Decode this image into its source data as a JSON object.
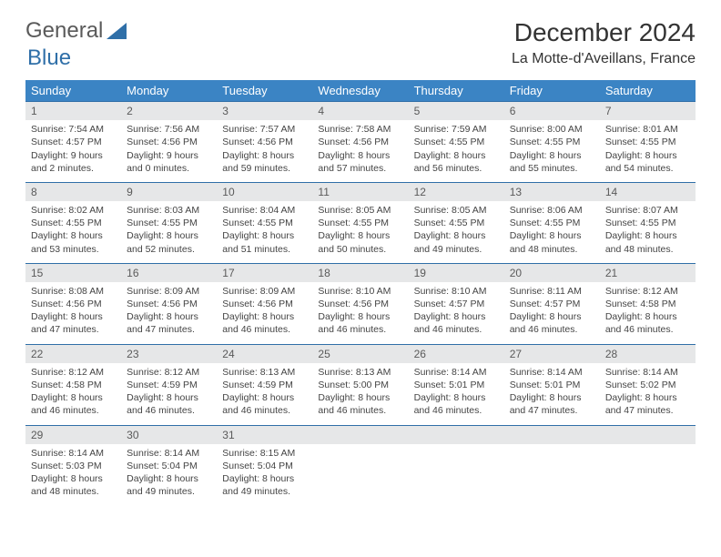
{
  "logo": {
    "text1": "General",
    "text2": "Blue"
  },
  "title": "December 2024",
  "location": "La Motte-d'Aveillans, France",
  "colors": {
    "header_bg": "#3b84c4",
    "header_text": "#ffffff",
    "daynum_bg": "#e6e7e8",
    "border": "#2f6fa8",
    "logo_gray": "#5a5a5a",
    "logo_blue": "#2f6fa8"
  },
  "weekdays": [
    "Sunday",
    "Monday",
    "Tuesday",
    "Wednesday",
    "Thursday",
    "Friday",
    "Saturday"
  ],
  "weeks": [
    [
      {
        "n": "1",
        "sr": "7:54 AM",
        "ss": "4:57 PM",
        "dl": "9 hours and 2 minutes."
      },
      {
        "n": "2",
        "sr": "7:56 AM",
        "ss": "4:56 PM",
        "dl": "9 hours and 0 minutes."
      },
      {
        "n": "3",
        "sr": "7:57 AM",
        "ss": "4:56 PM",
        "dl": "8 hours and 59 minutes."
      },
      {
        "n": "4",
        "sr": "7:58 AM",
        "ss": "4:56 PM",
        "dl": "8 hours and 57 minutes."
      },
      {
        "n": "5",
        "sr": "7:59 AM",
        "ss": "4:55 PM",
        "dl": "8 hours and 56 minutes."
      },
      {
        "n": "6",
        "sr": "8:00 AM",
        "ss": "4:55 PM",
        "dl": "8 hours and 55 minutes."
      },
      {
        "n": "7",
        "sr": "8:01 AM",
        "ss": "4:55 PM",
        "dl": "8 hours and 54 minutes."
      }
    ],
    [
      {
        "n": "8",
        "sr": "8:02 AM",
        "ss": "4:55 PM",
        "dl": "8 hours and 53 minutes."
      },
      {
        "n": "9",
        "sr": "8:03 AM",
        "ss": "4:55 PM",
        "dl": "8 hours and 52 minutes."
      },
      {
        "n": "10",
        "sr": "8:04 AM",
        "ss": "4:55 PM",
        "dl": "8 hours and 51 minutes."
      },
      {
        "n": "11",
        "sr": "8:05 AM",
        "ss": "4:55 PM",
        "dl": "8 hours and 50 minutes."
      },
      {
        "n": "12",
        "sr": "8:05 AM",
        "ss": "4:55 PM",
        "dl": "8 hours and 49 minutes."
      },
      {
        "n": "13",
        "sr": "8:06 AM",
        "ss": "4:55 PM",
        "dl": "8 hours and 48 minutes."
      },
      {
        "n": "14",
        "sr": "8:07 AM",
        "ss": "4:55 PM",
        "dl": "8 hours and 48 minutes."
      }
    ],
    [
      {
        "n": "15",
        "sr": "8:08 AM",
        "ss": "4:56 PM",
        "dl": "8 hours and 47 minutes."
      },
      {
        "n": "16",
        "sr": "8:09 AM",
        "ss": "4:56 PM",
        "dl": "8 hours and 47 minutes."
      },
      {
        "n": "17",
        "sr": "8:09 AM",
        "ss": "4:56 PM",
        "dl": "8 hours and 46 minutes."
      },
      {
        "n": "18",
        "sr": "8:10 AM",
        "ss": "4:56 PM",
        "dl": "8 hours and 46 minutes."
      },
      {
        "n": "19",
        "sr": "8:10 AM",
        "ss": "4:57 PM",
        "dl": "8 hours and 46 minutes."
      },
      {
        "n": "20",
        "sr": "8:11 AM",
        "ss": "4:57 PM",
        "dl": "8 hours and 46 minutes."
      },
      {
        "n": "21",
        "sr": "8:12 AM",
        "ss": "4:58 PM",
        "dl": "8 hours and 46 minutes."
      }
    ],
    [
      {
        "n": "22",
        "sr": "8:12 AM",
        "ss": "4:58 PM",
        "dl": "8 hours and 46 minutes."
      },
      {
        "n": "23",
        "sr": "8:12 AM",
        "ss": "4:59 PM",
        "dl": "8 hours and 46 minutes."
      },
      {
        "n": "24",
        "sr": "8:13 AM",
        "ss": "4:59 PM",
        "dl": "8 hours and 46 minutes."
      },
      {
        "n": "25",
        "sr": "8:13 AM",
        "ss": "5:00 PM",
        "dl": "8 hours and 46 minutes."
      },
      {
        "n": "26",
        "sr": "8:14 AM",
        "ss": "5:01 PM",
        "dl": "8 hours and 46 minutes."
      },
      {
        "n": "27",
        "sr": "8:14 AM",
        "ss": "5:01 PM",
        "dl": "8 hours and 47 minutes."
      },
      {
        "n": "28",
        "sr": "8:14 AM",
        "ss": "5:02 PM",
        "dl": "8 hours and 47 minutes."
      }
    ],
    [
      {
        "n": "29",
        "sr": "8:14 AM",
        "ss": "5:03 PM",
        "dl": "8 hours and 48 minutes."
      },
      {
        "n": "30",
        "sr": "8:14 AM",
        "ss": "5:04 PM",
        "dl": "8 hours and 49 minutes."
      },
      {
        "n": "31",
        "sr": "8:15 AM",
        "ss": "5:04 PM",
        "dl": "8 hours and 49 minutes."
      },
      {
        "empty": true
      },
      {
        "empty": true
      },
      {
        "empty": true
      },
      {
        "empty": true
      }
    ]
  ],
  "labels": {
    "sunrise": "Sunrise: ",
    "sunset": "Sunset: ",
    "daylight": "Daylight: "
  }
}
